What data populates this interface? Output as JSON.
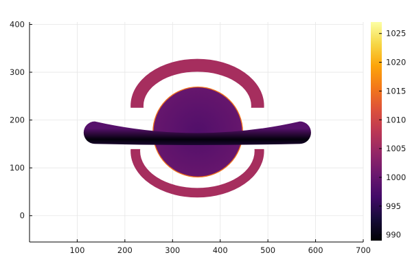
{
  "chart_data": {
    "type": "heatmap",
    "title": "",
    "xlabel": "",
    "ylabel": "",
    "xlim": [
      0,
      700
    ],
    "ylim": [
      -55,
      405
    ],
    "x_ticks": [
      "100",
      "200",
      "300",
      "400",
      "500",
      "600",
      "700"
    ],
    "x_tick_values": [
      100,
      200,
      300,
      400,
      500,
      600,
      700
    ],
    "y_ticks": [
      "0",
      "100",
      "200",
      "300",
      "400"
    ],
    "y_tick_values": [
      0,
      100,
      200,
      300,
      400
    ],
    "grid": true,
    "colormap": "inferno",
    "colorbar": {
      "range": [
        989,
        1027
      ],
      "ticks": [
        "990",
        "995",
        "1000",
        "1005",
        "1010",
        "1015",
        "1020",
        "1025"
      ],
      "tick_values": [
        990,
        995,
        1000,
        1005,
        1010,
        1015,
        1020,
        1025
      ]
    },
    "features": {
      "disk": {
        "center": [
          353,
          175
        ],
        "radius": 93,
        "value_center": 998,
        "value_edge": 1000
      },
      "inner_rim": {
        "value": 1015
      },
      "upper_arc": {
        "center": [
          352,
          230
        ],
        "outer_radii": [
          140,
          98
        ],
        "inner_radii": [
          113,
          71
        ],
        "value": 1006
      },
      "lower_arc": {
        "center": [
          352,
          135
        ],
        "outer_radii": [
          140,
          97
        ],
        "inner_radii": [
          120,
          77
        ],
        "value": 1006
      },
      "band": {
        "center": [
          352,
          178
        ],
        "half_width": 215,
        "half_thickness": 22,
        "curvature": 30,
        "value_center": 989.5,
        "value_edge": 998.5
      }
    }
  }
}
